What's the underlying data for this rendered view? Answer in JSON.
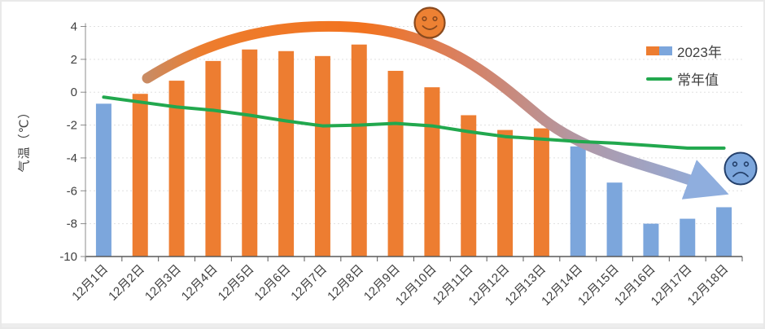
{
  "chart_data": {
    "type": "bar",
    "title": "",
    "ylabel": "气温（℃）",
    "xlabel": "",
    "categories": [
      "12月1日",
      "12月2日",
      "12月3日",
      "12月4日",
      "12月5日",
      "12月6日",
      "12月7日",
      "12月8日",
      "12月9日",
      "12月10日",
      "12月11日",
      "12月12日",
      "12月13日",
      "12月14日",
      "12月15日",
      "12月16日",
      "12月17日",
      "12月18日"
    ],
    "series": [
      {
        "name": "2023年",
        "type": "bar",
        "values": [
          -0.7,
          -0.1,
          0.7,
          1.9,
          2.6,
          2.5,
          2.2,
          2.9,
          1.3,
          0.3,
          -1.4,
          -2.3,
          -2.2,
          -3.3,
          -5.5,
          -8.0,
          -7.7,
          -7.0
        ],
        "point_colors": [
          "bar_blue",
          "bar_orange",
          "bar_orange",
          "bar_orange",
          "bar_orange",
          "bar_orange",
          "bar_orange",
          "bar_orange",
          "bar_orange",
          "bar_orange",
          "bar_orange",
          "bar_orange",
          "bar_orange",
          "bar_blue",
          "bar_blue",
          "bar_blue",
          "bar_blue",
          "bar_blue"
        ]
      },
      {
        "name": "常年值",
        "type": "line",
        "values": [
          -0.3,
          -0.6,
          -0.9,
          -1.1,
          -1.4,
          -1.75,
          -2.05,
          -2.0,
          -1.9,
          -2.05,
          -2.4,
          -2.7,
          -2.85,
          -3.0,
          -3.1,
          -3.25,
          -3.4,
          -3.4
        ]
      }
    ],
    "ylim": [
      -10,
      4
    ],
    "yticks": [
      4,
      2,
      0,
      -2,
      -4,
      -6,
      -8,
      -10
    ],
    "grid": true,
    "legend_position": "top-right",
    "annotations": [
      {
        "type": "trend-arrow",
        "desc": "thick curved arrow rising from 12月2日 to a peak near 12月7日 then falling to the lower right, color fades orange to blue"
      },
      {
        "type": "happy-face",
        "position": "above peak near 12月9日",
        "color": "orange"
      },
      {
        "type": "sad-face",
        "position": "right edge near -4°C",
        "color": "blue"
      }
    ]
  },
  "legend": {
    "item_2023_label": "2023年",
    "item_normal_label": "常年值"
  },
  "colors": {
    "bar_orange": "#ED7D31",
    "bar_blue": "#7CA6DC",
    "line_green": "#22A84E",
    "gridline": "#E0E0E0",
    "axis_dark": "#595959",
    "axis_gray": "#8C8C8C",
    "tick_text": "#404040",
    "arrow_start": "#C98B63",
    "arrow_mid": "#F2731F",
    "arrow_end": "#8FAEDE",
    "happy_face_fill": "#ED8133",
    "happy_face_stroke": "#8A4A1E",
    "sad_face_fill": "#7CA6DC",
    "sad_face_stroke": "#24406B"
  }
}
